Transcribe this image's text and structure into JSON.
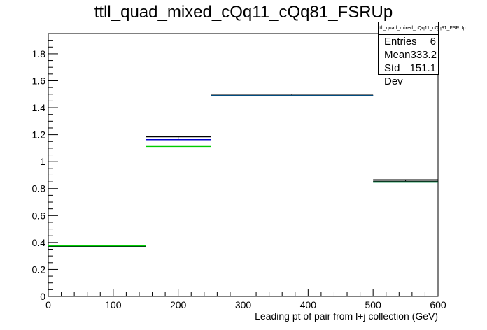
{
  "chart_data": {
    "type": "histogram",
    "title": "ttll_quad_mixed_cQq11_cQq81_FSRUp",
    "xlabel": "Leading pt of pair from l+j collection (GeV)",
    "ylabel": "",
    "xlim": [
      0,
      600
    ],
    "ylim": [
      0,
      1.95
    ],
    "x_ticks": [
      0,
      100,
      200,
      300,
      400,
      500,
      600
    ],
    "y_ticks": [
      0,
      0.2,
      0.4,
      0.6,
      0.8,
      1,
      1.2,
      1.4,
      1.6,
      1.8
    ],
    "x_tick_labels": [
      "0",
      "100",
      "200",
      "300",
      "400",
      "500",
      "600"
    ],
    "y_tick_labels": [
      "0",
      "0.2",
      "0.4",
      "0.6",
      "0.8",
      "1",
      "1.2",
      "1.4",
      "1.6",
      "1.8"
    ],
    "bin_edges": [
      0,
      150,
      250,
      500,
      600
    ],
    "series": [
      {
        "color": "#0000cc",
        "values": [
          0.375,
          1.163,
          1.49,
          0.848
        ]
      },
      {
        "color": "#00cc00",
        "values": [
          0.375,
          1.113,
          1.487,
          0.848
        ]
      }
    ],
    "error_bands": [
      {
        "color": "#000000",
        "upper": [
          0.38,
          1.185,
          1.5,
          0.865
        ],
        "lower": [
          0.372,
          1.163,
          1.49,
          0.855
        ]
      }
    ],
    "grid": false,
    "legend": "none"
  },
  "stats": {
    "title": "ttll_quad_mixed_cQq11_cQq81_FSRUp",
    "entries_label": "Entries",
    "entries_value": "6",
    "mean_label": "Mean",
    "mean_value": "333.2",
    "stddev_label": "Std Dev",
    "stddev_value": "151.1"
  }
}
